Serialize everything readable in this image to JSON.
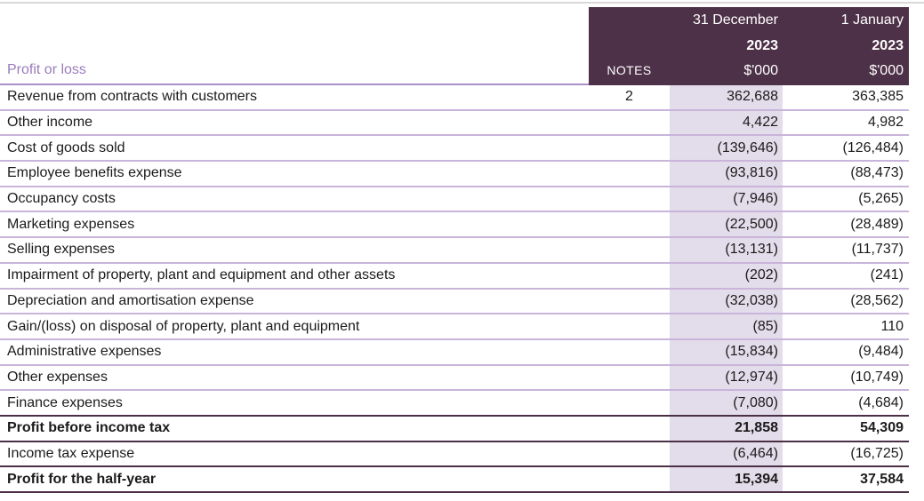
{
  "header": {
    "section_label": "Profit or loss",
    "notes_label": "NOTES",
    "columns": [
      {
        "date": "31 December",
        "year": "2023",
        "unit": "$'000"
      },
      {
        "date": "1 January",
        "year": "2023",
        "unit": "$'000"
      }
    ]
  },
  "rows": [
    {
      "label": "Revenue from contracts with customers",
      "note": "2",
      "dec_2023": "362,688",
      "jan_2023": "363,385",
      "bold": false,
      "divider": "light"
    },
    {
      "label": "Other income",
      "note": "",
      "dec_2023": "4,422",
      "jan_2023": "4,982",
      "bold": false,
      "divider": "light"
    },
    {
      "label": "Cost of goods sold",
      "note": "",
      "dec_2023": "(139,646)",
      "jan_2023": "(126,484)",
      "bold": false,
      "divider": "light"
    },
    {
      "label": "Employee benefits expense",
      "note": "",
      "dec_2023": "(93,816)",
      "jan_2023": "(88,473)",
      "bold": false,
      "divider": "light"
    },
    {
      "label": "Occupancy costs",
      "note": "",
      "dec_2023": "(7,946)",
      "jan_2023": "(5,265)",
      "bold": false,
      "divider": "light"
    },
    {
      "label": "Marketing expenses",
      "note": "",
      "dec_2023": "(22,500)",
      "jan_2023": "(28,489)",
      "bold": false,
      "divider": "light"
    },
    {
      "label": "Selling expenses",
      "note": "",
      "dec_2023": "(13,131)",
      "jan_2023": "(11,737)",
      "bold": false,
      "divider": "light"
    },
    {
      "label": "Impairment of property, plant and equipment and other assets",
      "note": "",
      "dec_2023": "(202)",
      "jan_2023": "(241)",
      "bold": false,
      "divider": "light"
    },
    {
      "label": "Depreciation and amortisation expense",
      "note": "",
      "dec_2023": "(32,038)",
      "jan_2023": "(28,562)",
      "bold": false,
      "divider": "light"
    },
    {
      "label": "Gain/(loss) on disposal of property, plant and equipment",
      "note": "",
      "dec_2023": "(85)",
      "jan_2023": "110",
      "bold": false,
      "divider": "light"
    },
    {
      "label": "Administrative expenses",
      "note": "",
      "dec_2023": "(15,834)",
      "jan_2023": "(9,484)",
      "bold": false,
      "divider": "light"
    },
    {
      "label": "Other expenses",
      "note": "",
      "dec_2023": "(12,974)",
      "jan_2023": "(10,749)",
      "bold": false,
      "divider": "light"
    },
    {
      "label": "Finance expenses",
      "note": "",
      "dec_2023": "(7,080)",
      "jan_2023": "(4,684)",
      "bold": false,
      "divider": "dark"
    },
    {
      "label": "Profit before income tax",
      "note": "",
      "dec_2023": "21,858",
      "jan_2023": "54,309",
      "bold": true,
      "divider": "dark"
    },
    {
      "label": "Income tax expense",
      "note": "",
      "dec_2023": "(6,464)",
      "jan_2023": "(16,725)",
      "bold": false,
      "divider": "dark"
    },
    {
      "label": "Profit for the half-year",
      "note": "",
      "dec_2023": "15,394",
      "jan_2023": "37,584",
      "bold": true,
      "divider": "dark"
    }
  ],
  "colors": {
    "header_bg": "#4d3148",
    "highlight_col_bg": "#e3dcea",
    "divider_light": "#c9b4da",
    "divider_dark": "#4b2f46",
    "header_underline": "#ab90c8",
    "section_label_color": "#9a7cba",
    "top_rule": "#d8d8d8",
    "text_color": "#1b1b1b"
  }
}
